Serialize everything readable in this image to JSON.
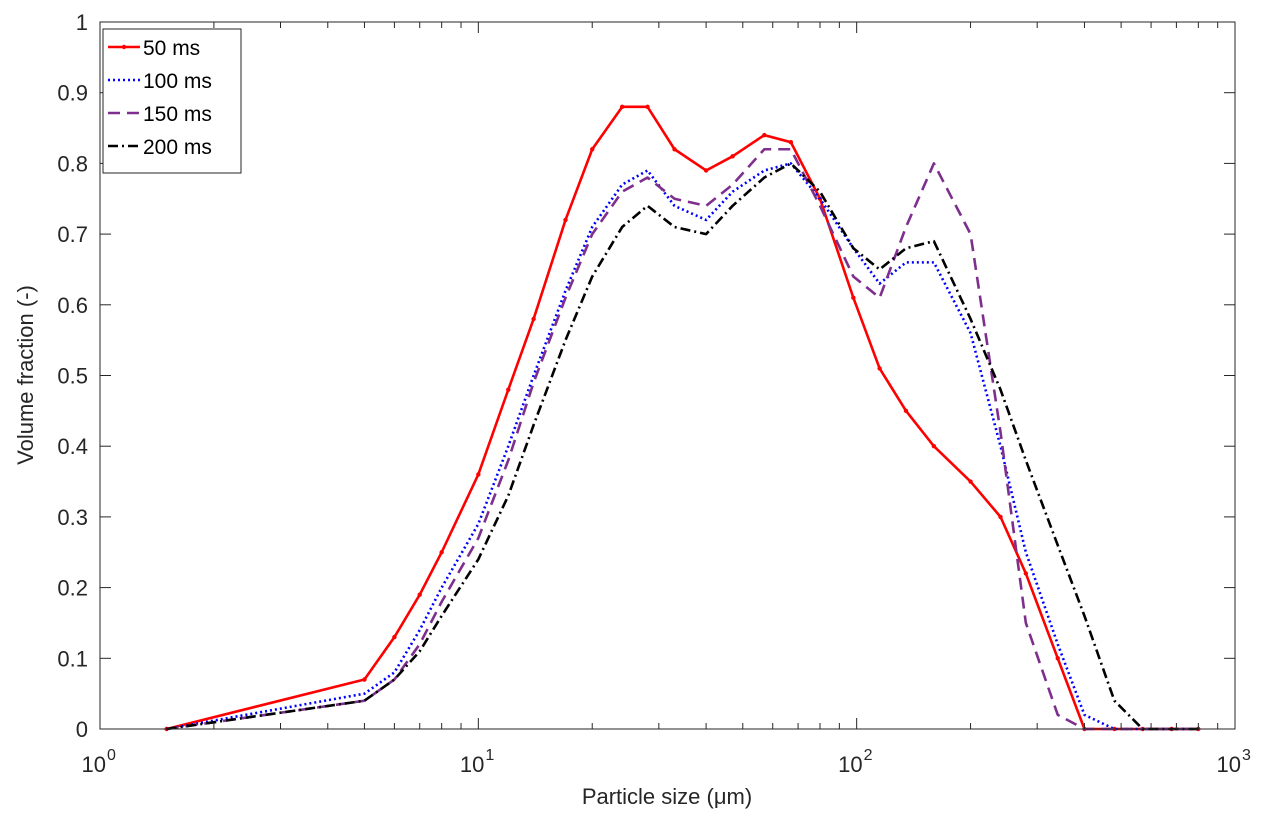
{
  "chart_data": {
    "type": "line",
    "xlabel": "Particle size (μm)",
    "ylabel": "Volume fraction (-)",
    "xscale": "log",
    "xlim": [
      1,
      1000
    ],
    "ylim": [
      0,
      1
    ],
    "grid": false,
    "legend_position": "top-left",
    "x_ticks": [
      {
        "value": 1,
        "base": "10",
        "exp": "0"
      },
      {
        "value": 10,
        "base": "10",
        "exp": "1"
      },
      {
        "value": 100,
        "base": "10",
        "exp": "2"
      },
      {
        "value": 1000,
        "base": "10",
        "exp": "3"
      }
    ],
    "y_ticks": [
      {
        "value": 0,
        "label": "0"
      },
      {
        "value": 0.1,
        "label": "0.1"
      },
      {
        "value": 0.2,
        "label": "0.2"
      },
      {
        "value": 0.3,
        "label": "0.3"
      },
      {
        "value": 0.4,
        "label": "0.4"
      },
      {
        "value": 0.5,
        "label": "0.5"
      },
      {
        "value": 0.6,
        "label": "0.6"
      },
      {
        "value": 0.7,
        "label": "0.7"
      },
      {
        "value": 0.8,
        "label": "0.8"
      },
      {
        "value": 0.9,
        "label": "0.9"
      },
      {
        "value": 1,
        "label": "1"
      }
    ],
    "series": [
      {
        "name": "50 ms",
        "color": "#ff0000",
        "style": "solid-dot",
        "x": [
          1.5,
          5,
          6,
          7,
          8,
          10,
          12,
          14,
          17,
          20,
          24,
          28,
          33,
          40,
          47,
          57,
          67,
          80,
          98,
          115,
          135,
          160,
          200,
          240,
          280,
          340,
          400,
          480,
          570,
          680,
          800
        ],
        "y": [
          0,
          0.07,
          0.13,
          0.19,
          0.25,
          0.36,
          0.48,
          0.58,
          0.72,
          0.82,
          0.88,
          0.88,
          0.82,
          0.79,
          0.81,
          0.84,
          0.83,
          0.75,
          0.61,
          0.51,
          0.45,
          0.4,
          0.35,
          0.3,
          0.22,
          0.1,
          0,
          0,
          0,
          0,
          0
        ]
      },
      {
        "name": "100 ms",
        "color": "#0000ff",
        "style": "dotted",
        "x": [
          1.5,
          5,
          6,
          7,
          8,
          10,
          12,
          14,
          17,
          20,
          24,
          28,
          33,
          40,
          47,
          57,
          67,
          80,
          98,
          115,
          135,
          160,
          200,
          240,
          280,
          340,
          400,
          480,
          570,
          680,
          800
        ],
        "y": [
          0,
          0.05,
          0.08,
          0.14,
          0.2,
          0.29,
          0.4,
          0.5,
          0.62,
          0.71,
          0.77,
          0.79,
          0.74,
          0.72,
          0.76,
          0.79,
          0.8,
          0.75,
          0.68,
          0.63,
          0.66,
          0.66,
          0.56,
          0.4,
          0.25,
          0.12,
          0.02,
          0,
          0,
          0,
          0
        ]
      },
      {
        "name": "150 ms",
        "color": "#7e2f8e",
        "style": "dashed",
        "x": [
          1.5,
          5,
          6,
          7,
          8,
          10,
          12,
          14,
          17,
          20,
          24,
          28,
          33,
          40,
          47,
          57,
          67,
          80,
          98,
          115,
          135,
          160,
          200,
          240,
          280,
          340,
          400,
          480,
          570,
          680,
          800
        ],
        "y": [
          0,
          0.04,
          0.07,
          0.12,
          0.18,
          0.27,
          0.38,
          0.49,
          0.61,
          0.7,
          0.76,
          0.78,
          0.75,
          0.74,
          0.77,
          0.82,
          0.82,
          0.74,
          0.64,
          0.61,
          0.71,
          0.8,
          0.7,
          0.42,
          0.15,
          0.02,
          0,
          0,
          0,
          0,
          0
        ]
      },
      {
        "name": "200 ms",
        "color": "#000000",
        "style": "dash-dot",
        "x": [
          1.5,
          5,
          6,
          7,
          8,
          10,
          12,
          14,
          17,
          20,
          24,
          28,
          33,
          40,
          47,
          57,
          67,
          80,
          98,
          115,
          135,
          160,
          200,
          240,
          280,
          340,
          400,
          480,
          570,
          680,
          800
        ],
        "y": [
          0,
          0.04,
          0.07,
          0.11,
          0.16,
          0.24,
          0.33,
          0.43,
          0.55,
          0.64,
          0.71,
          0.74,
          0.71,
          0.7,
          0.74,
          0.78,
          0.8,
          0.76,
          0.68,
          0.65,
          0.68,
          0.69,
          0.58,
          0.48,
          0.38,
          0.26,
          0.16,
          0.04,
          0,
          0,
          0
        ]
      }
    ]
  }
}
